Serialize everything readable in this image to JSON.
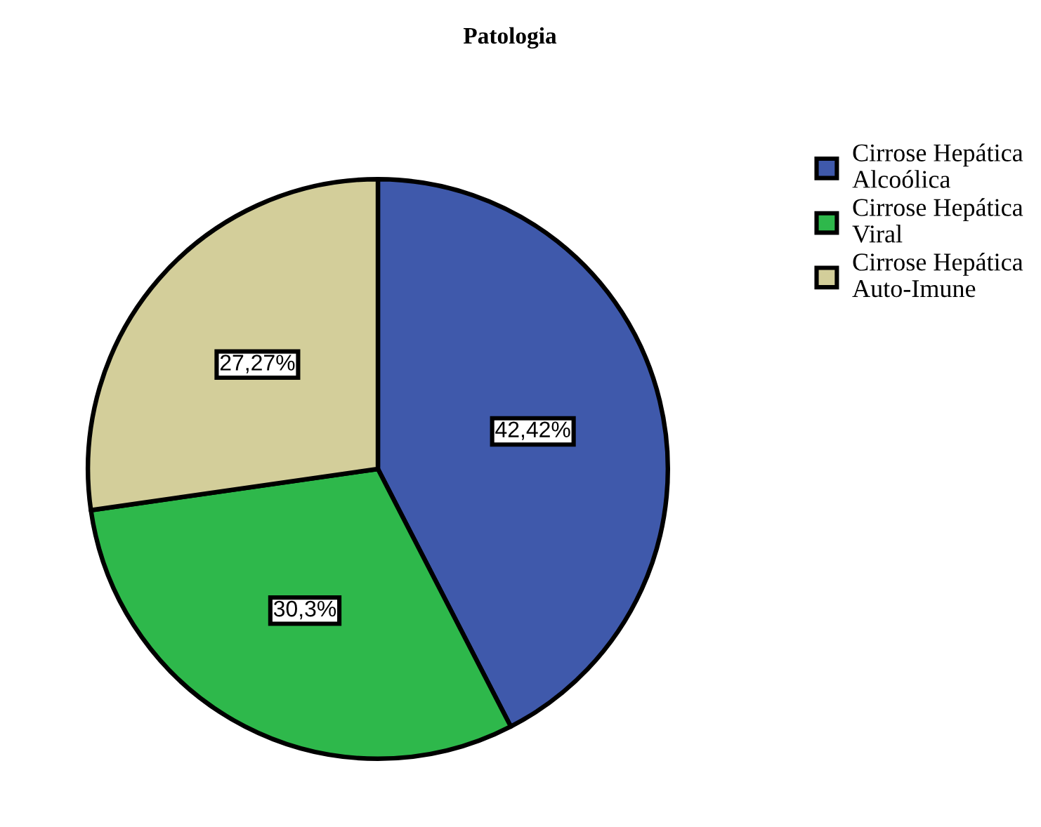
{
  "chart_data": {
    "type": "pie",
    "title": "Patologia",
    "categories": [
      "Cirrose Hepática\nAlcoólica",
      "Cirrose Hepática\nViral",
      "Cirrose Hepática\nAuto-Imune"
    ],
    "values": [
      42.42,
      30.3,
      27.27
    ],
    "colors": [
      "#3f59ab",
      "#2eb84b",
      "#d3ce9a"
    ],
    "value_labels": [
      "42,42%",
      "30,3%",
      "27,27%"
    ],
    "legend": "top right"
  }
}
